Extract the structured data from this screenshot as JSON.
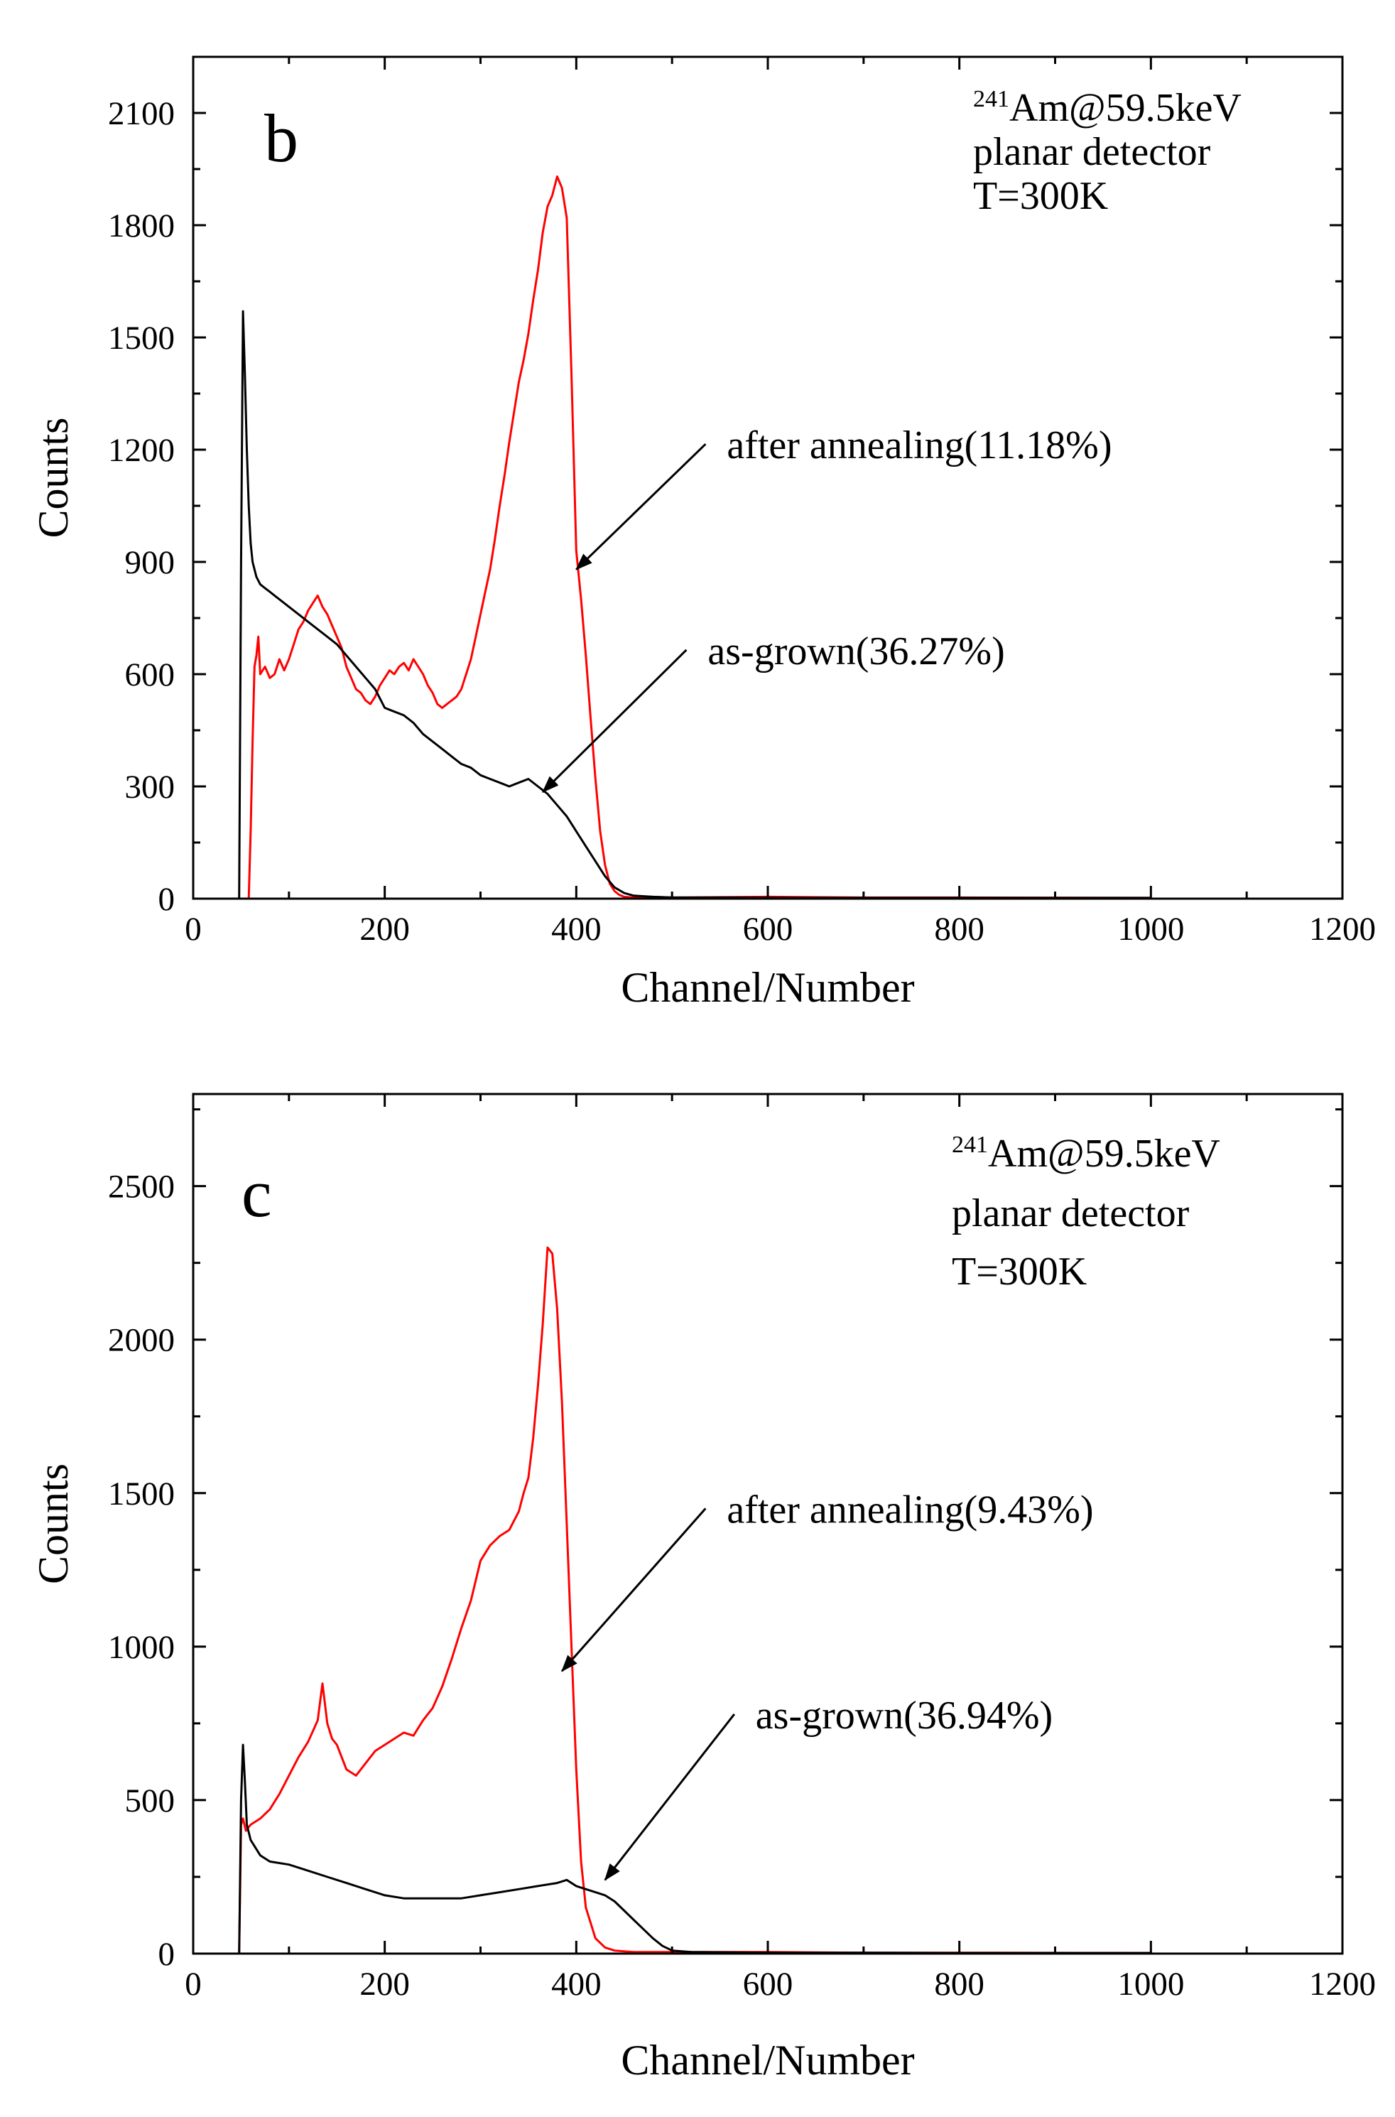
{
  "colors": {
    "after_annealing": "#ff0000",
    "as_grown": "#000000",
    "axis": "#000000"
  },
  "chart_data": [
    {
      "type": "line",
      "panel": "b",
      "xlabel": "Channel/Number",
      "ylabel": "Counts",
      "xlim": [
        0,
        1200
      ],
      "ylim": [
        0,
        2250
      ],
      "xticks": [
        0,
        200,
        400,
        600,
        800,
        1000,
        1200
      ],
      "yticks": [
        0,
        300,
        600,
        900,
        1200,
        1500,
        1800,
        2100
      ],
      "info": {
        "isotope_mass": "241",
        "source": "Am@59.5keV",
        "detector": "planar detector",
        "temperature": "T=300K"
      },
      "series": [
        {
          "name": "after annealing",
          "label": "after annealing(11.18%)",
          "color": "#ff0000",
          "x": [
            0,
            58,
            60,
            62,
            64,
            66,
            68,
            70,
            75,
            80,
            85,
            90,
            95,
            100,
            105,
            110,
            115,
            120,
            125,
            130,
            135,
            140,
            145,
            150,
            155,
            160,
            165,
            170,
            175,
            180,
            185,
            190,
            195,
            200,
            205,
            210,
            215,
            220,
            225,
            230,
            235,
            240,
            245,
            250,
            255,
            260,
            265,
            270,
            275,
            280,
            285,
            290,
            295,
            300,
            305,
            310,
            315,
            320,
            325,
            330,
            335,
            340,
            345,
            350,
            355,
            360,
            365,
            370,
            375,
            380,
            385,
            390,
            395,
            400,
            405,
            410,
            415,
            420,
            425,
            430,
            435,
            440,
            445,
            450,
            460,
            480,
            500,
            600,
            700,
            800,
            1000
          ],
          "y": [
            0,
            0,
            180,
            420,
            620,
            650,
            700,
            600,
            620,
            590,
            600,
            640,
            610,
            640,
            680,
            720,
            740,
            770,
            790,
            810,
            780,
            760,
            730,
            700,
            670,
            620,
            590,
            560,
            550,
            530,
            520,
            540,
            570,
            590,
            610,
            600,
            620,
            630,
            610,
            640,
            620,
            600,
            570,
            550,
            520,
            510,
            520,
            530,
            540,
            560,
            600,
            640,
            700,
            760,
            820,
            880,
            960,
            1050,
            1130,
            1220,
            1300,
            1380,
            1440,
            1510,
            1600,
            1680,
            1780,
            1850,
            1880,
            1930,
            1900,
            1820,
            1400,
            930,
            800,
            650,
            480,
            320,
            180,
            90,
            40,
            20,
            10,
            5,
            3,
            5,
            3,
            5,
            3,
            3,
            2
          ]
        },
        {
          "name": "as-grown",
          "label": "as-grown(36.27%)",
          "color": "#000000",
          "x": [
            0,
            48,
            50,
            52,
            54,
            56,
            58,
            60,
            62,
            64,
            66,
            68,
            70,
            75,
            80,
            85,
            90,
            95,
            100,
            110,
            120,
            130,
            140,
            150,
            160,
            170,
            180,
            190,
            200,
            210,
            220,
            230,
            240,
            250,
            260,
            270,
            280,
            290,
            300,
            310,
            320,
            330,
            340,
            350,
            360,
            370,
            380,
            390,
            400,
            410,
            420,
            430,
            440,
            450,
            460,
            480,
            500,
            550,
            600,
            700,
            800,
            1000
          ],
          "y": [
            0,
            0,
            900,
            1570,
            1400,
            1200,
            1050,
            950,
            900,
            880,
            860,
            850,
            840,
            830,
            820,
            810,
            800,
            790,
            780,
            760,
            740,
            720,
            700,
            680,
            650,
            620,
            590,
            560,
            510,
            500,
            490,
            470,
            440,
            420,
            400,
            380,
            360,
            350,
            330,
            320,
            310,
            300,
            310,
            320,
            300,
            280,
            250,
            220,
            180,
            140,
            100,
            60,
            30,
            15,
            8,
            5,
            3,
            3,
            2,
            2,
            2,
            2
          ]
        }
      ],
      "annotations": [
        {
          "text": "after annealing(11.18%)",
          "target_series": "after annealing",
          "x_from": 535,
          "y_from": 1215,
          "x_to": 400,
          "y_to": 880
        },
        {
          "text": "as-grown(36.27%)",
          "target_series": "as-grown",
          "x_from": 515,
          "y_from": 665,
          "x_to": 365,
          "y_to": 285
        }
      ]
    },
    {
      "type": "line",
      "panel": "c",
      "xlabel": "Channel/Number",
      "ylabel": "Counts",
      "xlim": [
        0,
        1200
      ],
      "ylim": [
        0,
        2800
      ],
      "xticks": [
        0,
        200,
        400,
        600,
        800,
        1000,
        1200
      ],
      "yticks": [
        0,
        500,
        1000,
        1500,
        2000,
        2500
      ],
      "info": {
        "isotope_mass": "241",
        "source": "Am@59.5keV",
        "detector": "planar detector",
        "temperature": "T=300K"
      },
      "series": [
        {
          "name": "after annealing",
          "label": "after annealing(9.43%)",
          "color": "#ff0000",
          "x": [
            0,
            48,
            50,
            52,
            55,
            60,
            70,
            80,
            90,
            100,
            110,
            120,
            130,
            135,
            140,
            145,
            150,
            160,
            170,
            180,
            190,
            200,
            210,
            220,
            230,
            240,
            250,
            260,
            270,
            280,
            290,
            300,
            310,
            320,
            330,
            340,
            345,
            350,
            355,
            360,
            365,
            370,
            375,
            380,
            385,
            390,
            395,
            400,
            405,
            410,
            420,
            430,
            440,
            460,
            500,
            600,
            700,
            800,
            1000
          ],
          "y": [
            0,
            0,
            420,
            440,
            400,
            420,
            440,
            470,
            520,
            580,
            640,
            690,
            760,
            880,
            750,
            700,
            680,
            600,
            580,
            620,
            660,
            680,
            700,
            720,
            710,
            760,
            800,
            870,
            960,
            1060,
            1150,
            1280,
            1330,
            1360,
            1380,
            1440,
            1500,
            1550,
            1680,
            1850,
            2050,
            2300,
            2280,
            2100,
            1800,
            1400,
            1000,
            600,
            300,
            150,
            50,
            20,
            10,
            5,
            5,
            5,
            3,
            3,
            2
          ]
        },
        {
          "name": "as-grown",
          "label": "as-grown(36.94%)",
          "color": "#000000",
          "x": [
            0,
            48,
            50,
            52,
            54,
            56,
            60,
            70,
            80,
            100,
            120,
            140,
            160,
            180,
            200,
            220,
            240,
            260,
            280,
            300,
            320,
            340,
            360,
            380,
            390,
            400,
            410,
            420,
            430,
            440,
            450,
            460,
            470,
            480,
            490,
            500,
            520,
            600,
            700,
            800,
            1000
          ],
          "y": [
            0,
            0,
            500,
            680,
            560,
            420,
            370,
            320,
            300,
            290,
            270,
            250,
            230,
            210,
            190,
            180,
            180,
            180,
            180,
            190,
            200,
            210,
            220,
            230,
            240,
            220,
            210,
            200,
            190,
            170,
            140,
            110,
            80,
            50,
            25,
            10,
            5,
            3,
            3,
            2,
            2
          ]
        }
      ],
      "annotations": [
        {
          "text": "after annealing(9.43%)",
          "target_series": "after annealing",
          "x_from": 535,
          "y_from": 1450,
          "x_to": 385,
          "y_to": 920
        },
        {
          "text": "as-grown(36.94%)",
          "target_series": "as-grown",
          "x_from": 565,
          "y_from": 780,
          "x_to": 430,
          "y_to": 240
        }
      ]
    }
  ]
}
